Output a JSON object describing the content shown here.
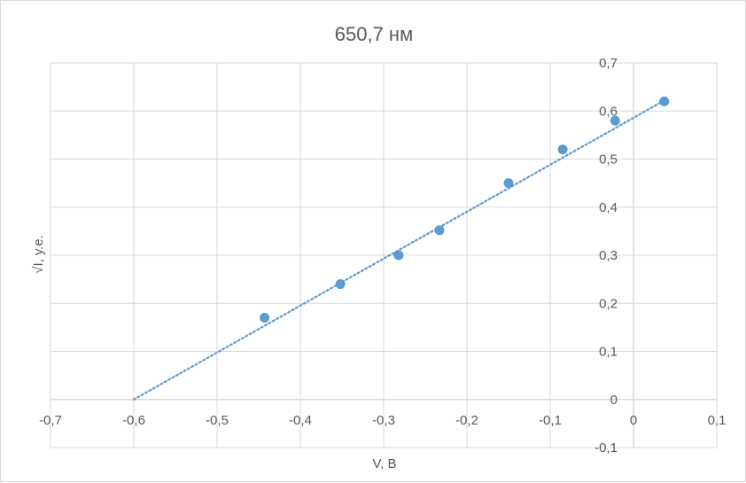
{
  "chart_data": {
    "type": "scatter",
    "title": "650,7 нм",
    "xlabel": "V, В",
    "ylabel": "√I, у.е.",
    "xlim": [
      -0.7,
      0.1
    ],
    "ylim": [
      -0.1,
      0.7
    ],
    "x_ticks": [
      -0.7,
      -0.6,
      -0.5,
      -0.4,
      -0.3,
      -0.2,
      -0.1,
      0,
      0.1
    ],
    "x_tick_labels": [
      "-0,7",
      "-0,6",
      "-0,5",
      "-0,4",
      "-0,3",
      "-0,2",
      "-0,1",
      "0",
      "0,1"
    ],
    "y_ticks": [
      -0.1,
      0,
      0.1,
      0.2,
      0.3,
      0.4,
      0.5,
      0.6,
      0.7
    ],
    "y_tick_labels": [
      "-0,1",
      "0",
      "0,1",
      "0,2",
      "0,3",
      "0,4",
      "0,5",
      "0,6",
      "0,7"
    ],
    "grid": true,
    "series": [
      {
        "x": [
          -0.443,
          -0.352,
          -0.282,
          -0.233,
          -0.15,
          -0.085,
          -0.022,
          0.037
        ],
        "y": [
          0.17,
          0.24,
          0.3,
          0.352,
          0.45,
          0.52,
          0.58,
          0.62
        ],
        "color": "#5b9bd5"
      }
    ],
    "trendline": {
      "type": "linear",
      "x_start": -0.6,
      "x_end": 0.037,
      "y_start": 0,
      "y_end": 0.622,
      "style": "dotted",
      "color": "#5b9bd5"
    },
    "colors": {
      "grid": "#d9d9d9",
      "axis": "#d9d9d9",
      "text": "#595959"
    }
  }
}
